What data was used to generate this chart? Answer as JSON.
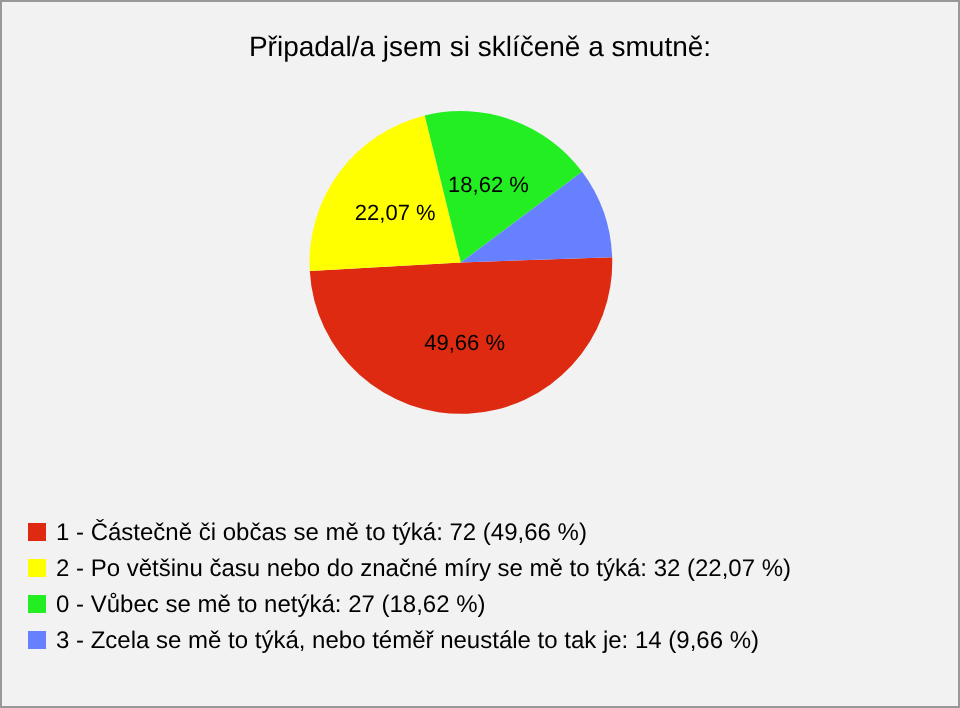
{
  "chart_data": {
    "type": "pie",
    "title": "Připadal/a jsem si sklíčeně a smutně:",
    "categories": [
      "1 - Částečně či občas se mě to týká: 72 (49,66 %)",
      "2 - Po většinu času nebo do značné míry se mě to týká: 32 (22,07 %)",
      "0 - Vůbec se mě to netýká: 27 (18,62 %)",
      "3 - Zcela se mě to týká, nebo téměř neustále to tak je: 14 (9,66 %)"
    ],
    "values": [
      49.66,
      22.07,
      18.62,
      9.66
    ],
    "colors": [
      "#dd2a10",
      "#ffff00",
      "#22ee22",
      "#6680ff"
    ],
    "value_labels": [
      "49,66 %",
      "22,07 %",
      "18,62 %",
      null
    ],
    "legend": "bottom"
  }
}
